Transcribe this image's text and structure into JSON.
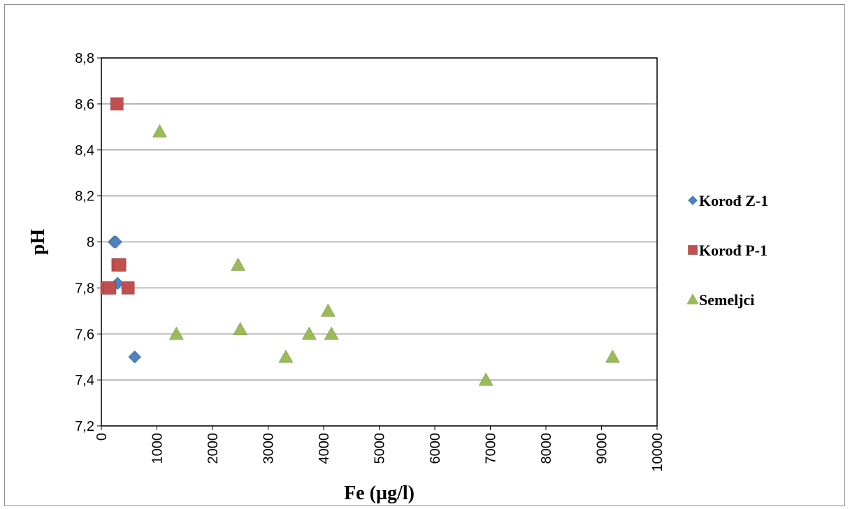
{
  "chart_data": {
    "type": "scatter",
    "title": "",
    "xlabel": "Fe (µg/l)",
    "ylabel": "pH",
    "xlim": [
      0,
      10000
    ],
    "ylim": [
      7.2,
      8.8
    ],
    "x_ticks": [
      0,
      1000,
      2000,
      3000,
      4000,
      5000,
      6000,
      7000,
      8000,
      9000,
      10000
    ],
    "y_ticks": [
      "7,2",
      "7,4",
      "7,6",
      "7,8",
      "8",
      "8,2",
      "8,4",
      "8,6",
      "8,8"
    ],
    "y_tick_values": [
      7.2,
      7.4,
      7.6,
      7.8,
      8.0,
      8.2,
      8.4,
      8.6,
      8.8
    ],
    "grid": "horizontal",
    "legend_position": "right",
    "series": [
      {
        "name": "Korođ Z-1",
        "marker": "diamond",
        "color": "#4f81bd",
        "points": [
          [
            230,
            8.0
          ],
          [
            260,
            8.0
          ],
          [
            290,
            7.82
          ],
          [
            600,
            7.5
          ]
        ]
      },
      {
        "name": "Korođ P-1",
        "marker": "square",
        "color": "#c0504d",
        "points": [
          [
            280,
            8.6
          ],
          [
            300,
            7.9
          ],
          [
            330,
            7.9
          ],
          [
            100,
            7.8
          ],
          [
            150,
            7.8
          ],
          [
            480,
            7.8
          ]
        ]
      },
      {
        "name": "Semeljci",
        "marker": "triangle",
        "color": "#9bbb59",
        "points": [
          [
            1050,
            8.48
          ],
          [
            1350,
            7.6
          ],
          [
            2460,
            7.9
          ],
          [
            2500,
            7.62
          ],
          [
            3320,
            7.5
          ],
          [
            3740,
            7.6
          ],
          [
            4080,
            7.7
          ],
          [
            4140,
            7.6
          ],
          [
            6920,
            7.4
          ],
          [
            9200,
            7.5
          ]
        ]
      }
    ]
  }
}
